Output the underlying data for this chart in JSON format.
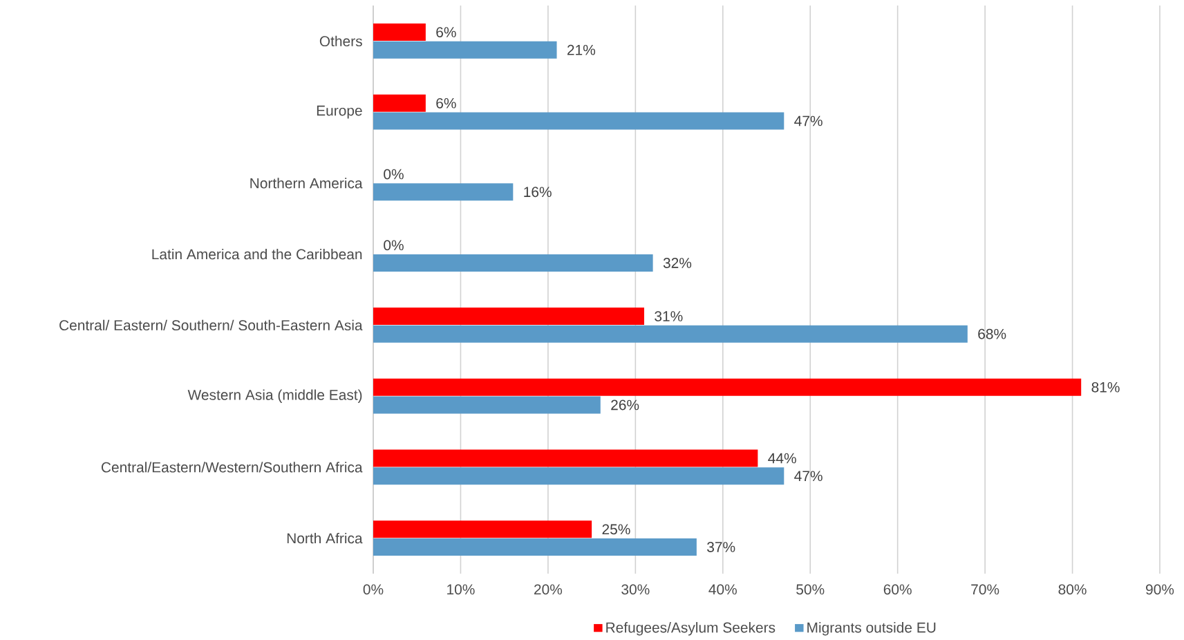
{
  "chart_data": {
    "type": "bar",
    "orientation": "horizontal",
    "categories": [
      "Others",
      "Europe",
      "Northern America",
      "Latin America and the Caribbean",
      "Central/ Eastern/ Southern/ South-Eastern Asia",
      "Western Asia (middle East)",
      "Central/Eastern/Western/Southern Africa",
      "North Africa"
    ],
    "series": [
      {
        "name": "Refugees/Asylum Seekers",
        "color": "#ff0000",
        "values": [
          6,
          6,
          0,
          0,
          31,
          81,
          44,
          25
        ],
        "value_labels": [
          "6%",
          "6%",
          "0%",
          "0%",
          "31%",
          "81%",
          "44%",
          "25%"
        ]
      },
      {
        "name": "Migrants outside EU",
        "color": "#5a9ac8",
        "values": [
          21,
          47,
          16,
          32,
          68,
          26,
          47,
          37
        ],
        "value_labels": [
          "21%",
          "47%",
          "16%",
          "32%",
          "68%",
          "26%",
          "47%",
          "37%"
        ]
      }
    ],
    "xlim": [
      0,
      90
    ],
    "xticks": [
      {
        "value": 0,
        "label": "0%"
      },
      {
        "value": 10,
        "label": "10%"
      },
      {
        "value": 20,
        "label": "20%"
      },
      {
        "value": 30,
        "label": "30%"
      },
      {
        "value": 40,
        "label": "40%"
      },
      {
        "value": 50,
        "label": "50%"
      },
      {
        "value": 60,
        "label": "60%"
      },
      {
        "value": 70,
        "label": "70%"
      },
      {
        "value": 80,
        "label": "80%"
      },
      {
        "value": 90,
        "label": "90%"
      }
    ],
    "grid": "x",
    "legend": "bottom"
  }
}
